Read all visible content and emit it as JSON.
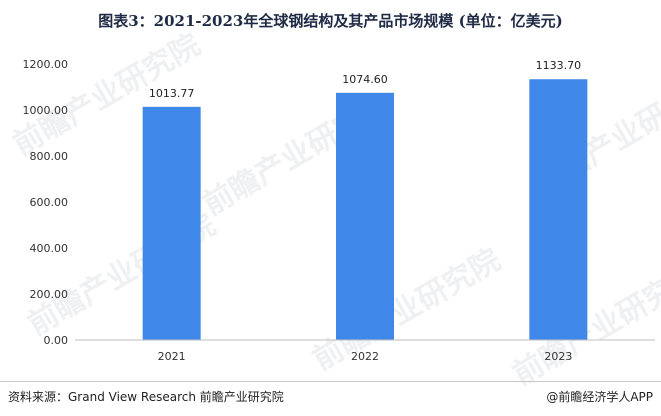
{
  "title": "图表3：2021-2023年全球钢结构及其产品市场规模 (单位：亿美元)",
  "source": "资料来源：Grand View Research 前瞻产业研究院",
  "credit": "@前瞻经济学人APP",
  "watermark": "前瞻产业研究院",
  "colors": {
    "bar": "#3f87e8",
    "axis": "#bfbfbf"
  },
  "chart_data": {
    "type": "bar",
    "categories": [
      "2021",
      "2022",
      "2023"
    ],
    "values": [
      1013.77,
      1074.6,
      1133.7
    ],
    "data_labels": [
      "1013.77",
      "1074.60",
      "1133.70"
    ],
    "title": "图表3：2021-2023年全球钢结构及其产品市场规模 (单位：亿美元)",
    "xlabel": "",
    "ylabel": "",
    "ylim": [
      0,
      1200
    ],
    "yticks": [
      "0.00",
      "200.00",
      "400.00",
      "600.00",
      "800.00",
      "1000.00",
      "1200.00"
    ],
    "grid": false,
    "legend": "none"
  }
}
